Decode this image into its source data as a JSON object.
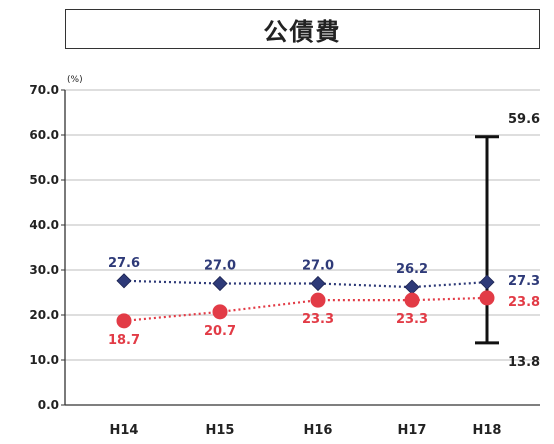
{
  "chart_data": {
    "type": "line",
    "title": "公債費",
    "ylabel": "(%)",
    "ylim": [
      0,
      70
    ],
    "yticks": [
      "0.0",
      "10.0",
      "20.0",
      "30.0",
      "40.0",
      "50.0",
      "60.0",
      "70.0"
    ],
    "categories": [
      "H14",
      "H15",
      "H16",
      "H17",
      "H18"
    ],
    "grid": true,
    "series": [
      {
        "values": [
          27.6,
          27.0,
          27.0,
          26.2,
          27.3
        ],
        "labels": [
          "27.6",
          "27.0",
          "27.0",
          "26.2",
          "27.3"
        ],
        "color": "#2e3a78",
        "marker": "diamond",
        "line": "dotted"
      },
      {
        "values": [
          18.7,
          20.7,
          23.3,
          23.3,
          23.8
        ],
        "labels": [
          "18.7",
          "20.7",
          "23.3",
          "23.3",
          "23.8"
        ],
        "color": "#e23b46",
        "marker": "circle",
        "line": "dotted"
      }
    ],
    "range_bar": {
      "category": "H18",
      "max": 59.6,
      "min": 13.8,
      "max_label": "59.6",
      "min_label": "13.8"
    }
  }
}
